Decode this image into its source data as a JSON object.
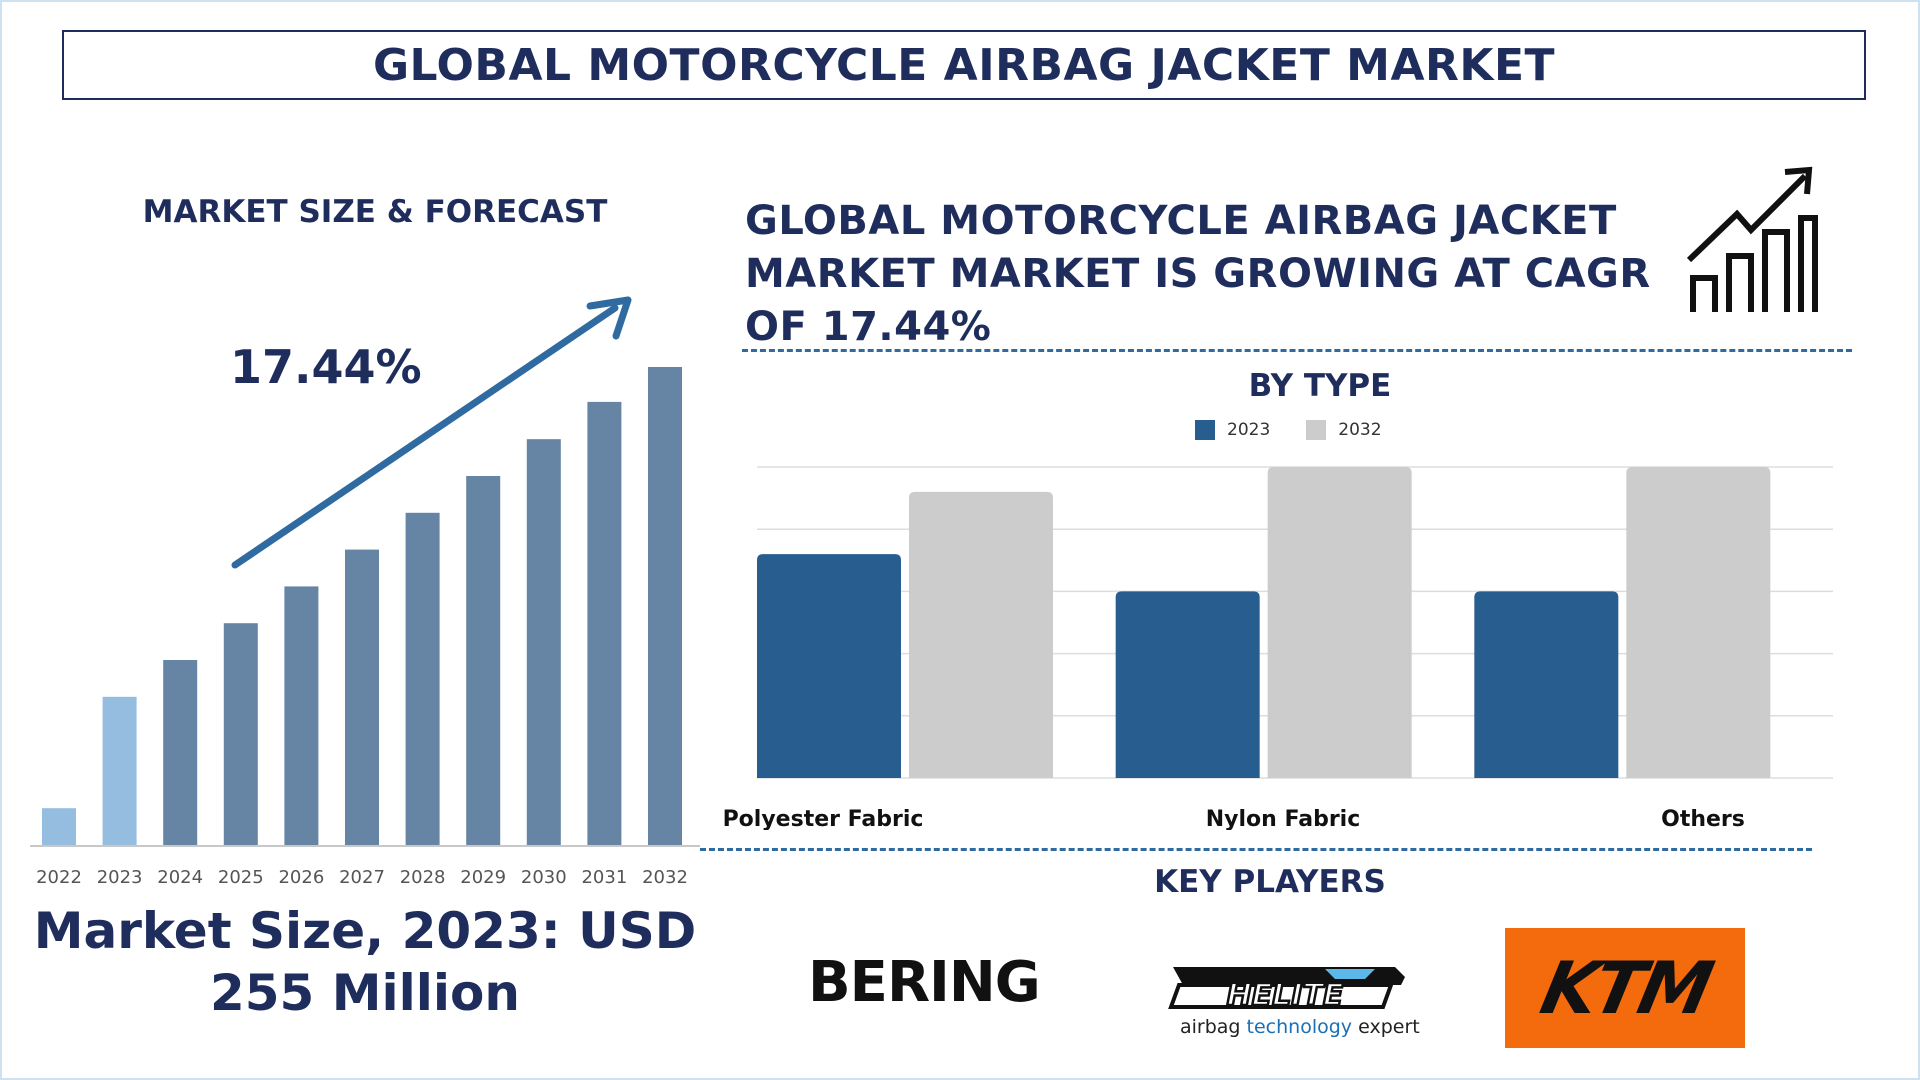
{
  "page": {
    "title": "GLOBAL MOTORCYCLE AIRBAG JACKET MARKET",
    "left_title": "MARKET SIZE & FORECAST",
    "cagr_label": "17.44%",
    "market_size_line1": "Market Size, 2023: USD",
    "market_size_line2": "255 Million",
    "headline_line1": "GLOBAL MOTORCYCLE AIRBAG JACKET",
    "headline_line2": "MARKET MARKET IS GROWING AT CAGR",
    "headline_line3": "OF 17.44%",
    "by_type_title": "BY TYPE",
    "key_players_title": "KEY PLAYERS",
    "key_players": [
      "BERING",
      "HELITE",
      "KTM"
    ],
    "helite_tagline_part1": "airbag",
    "helite_tagline_part2": "technology",
    "helite_tagline_part3": "expert"
  },
  "icons": [
    "growth-chart-icon",
    "trend-arrow-icon"
  ],
  "chart_data": [
    {
      "type": "bar",
      "categories": [
        "2022",
        "2023",
        "2024",
        "2025",
        "2026",
        "2027",
        "2028",
        "2029",
        "2030",
        "2031",
        "2032"
      ],
      "values": [
        0.077,
        0.31,
        0.387,
        0.464,
        0.541,
        0.618,
        0.695,
        0.772,
        0.849,
        0.927,
        1.0
      ],
      "highlight_categories": [
        "2022",
        "2023"
      ],
      "colors": {
        "default": "#6685a5",
        "2022": "#95bde0",
        "2023": "#95bde0"
      },
      "annotation": "17.44%",
      "y_axis_shown": false
    },
    {
      "type": "bar",
      "title": "BY TYPE",
      "categories": [
        "Polyester Fabric",
        "Nylon Fabric",
        "Others"
      ],
      "series": [
        {
          "name": "2023",
          "color": "#285d8f",
          "values": [
            3.6,
            3.0,
            3.0
          ]
        },
        {
          "name": "2032",
          "color": "#cccccc",
          "values": [
            4.6,
            5.0,
            5.0
          ]
        }
      ],
      "ylim": [
        0,
        5
      ],
      "grid": true,
      "legend": "top-center"
    }
  ]
}
